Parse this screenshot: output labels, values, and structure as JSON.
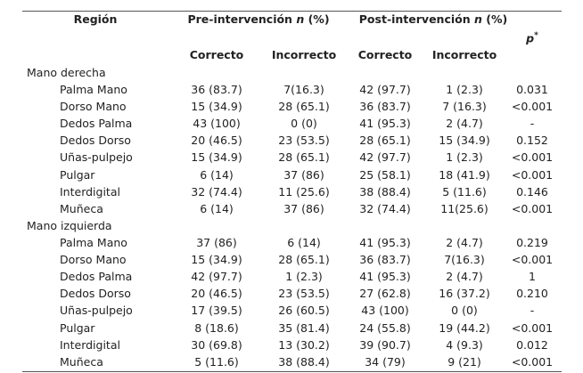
{
  "table": {
    "header": {
      "region": "Región",
      "pre": {
        "text": "Pre-intervención",
        "italic": "n",
        "suffix": "(%)"
      },
      "post": {
        "text": "Post-intervención",
        "italic": "n",
        "suffix": "(%)"
      },
      "p": {
        "text": "p",
        "sup": "*"
      },
      "sub": [
        "Correcto",
        "Incorrecto",
        "Correcto",
        "Incorrecto"
      ]
    },
    "sections": [
      {
        "label": "Mano derecha",
        "rows": [
          [
            "Palma Mano",
            "36 (83.7)",
            "7(16.3)",
            "42 (97.7)",
            "1 (2.3)",
            "0.031"
          ],
          [
            "Dorso Mano",
            "15 (34.9)",
            "28 (65.1)",
            "36 (83.7)",
            "7 (16.3)",
            "<0.001"
          ],
          [
            "Dedos Palma",
            "43 (100)",
            "0 (0)",
            "41 (95.3)",
            "2 (4.7)",
            "-"
          ],
          [
            "Dedos Dorso",
            "20 (46.5)",
            "23 (53.5)",
            "28 (65.1)",
            "15 (34.9)",
            "0.152"
          ],
          [
            "Uñas-pulpejo",
            "15 (34.9)",
            "28 (65.1)",
            "42 (97.7)",
            "1 (2.3)",
            "<0.001"
          ],
          [
            "Pulgar",
            "6 (14)",
            "37 (86)",
            "25 (58.1)",
            "18 (41.9)",
            "<0.001"
          ],
          [
            "Interdigital",
            "32 (74.4)",
            "11 (25.6)",
            "38 (88.4)",
            "5 (11.6)",
            "0.146"
          ],
          [
            "Muñeca",
            "6 (14)",
            "37 (86)",
            "32 (74.4)",
            "11(25.6)",
            "<0.001"
          ]
        ]
      },
      {
        "label": "Mano izquierda",
        "rows": [
          [
            "Palma Mano",
            "37 (86)",
            "6 (14)",
            "41 (95.3)",
            "2 (4.7)",
            "0.219"
          ],
          [
            "Dorso Mano",
            "15 (34.9)",
            "28 (65.1)",
            "36 (83.7)",
            "7(16.3)",
            "<0.001"
          ],
          [
            "Dedos Palma",
            "42 (97.7)",
            "1 (2.3)",
            "41 (95.3)",
            "2 (4.7)",
            "1"
          ],
          [
            "Dedos Dorso",
            "20 (46.5)",
            "23 (53.5)",
            "27 (62.8)",
            "16 (37.2)",
            "0.210"
          ],
          [
            "Uñas-pulpejo",
            "17 (39.5)",
            "26 (60.5)",
            "43 (100)",
            "0 (0)",
            "-"
          ],
          [
            "Pulgar",
            "8 (18.6)",
            "35 (81.4)",
            "24 (55.8)",
            "19 (44.2)",
            "<0.001"
          ],
          [
            "Interdigital",
            "30 (69.8)",
            "13 (30.2)",
            "39 (90.7)",
            "4 (9.3)",
            "0.012"
          ],
          [
            "Muñeca",
            "5 (11.6)",
            "38 (88.4)",
            "34 (79)",
            "9 (21)",
            "<0.001"
          ]
        ]
      }
    ]
  }
}
